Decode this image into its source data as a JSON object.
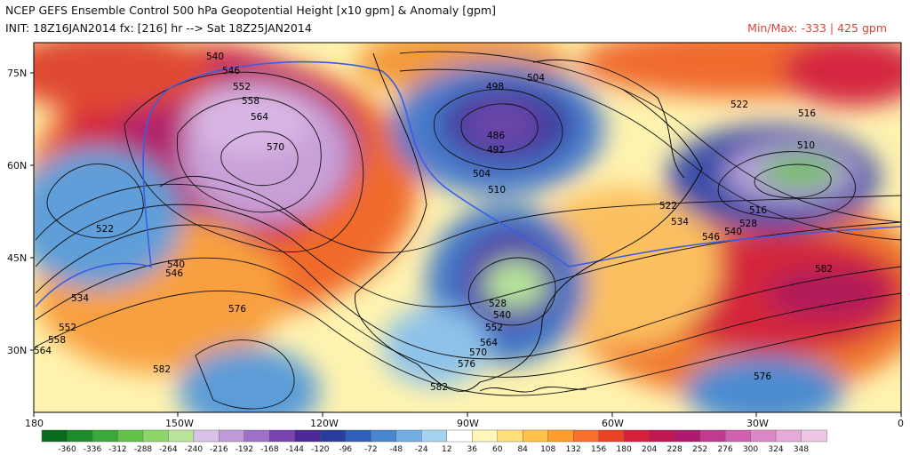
{
  "header": {
    "title": "NCEP GEFS Ensemble Control 500 hPa Geopotential Height [x10 gpm] & Anomaly [gpm]",
    "init": "INIT: 18Z16JAN2014 fx: [216] hr --> Sat 18Z25JAN2014",
    "minmax": "Min/Max:   -333 |   425 gpm"
  },
  "axes": {
    "lat_labels": [
      "75N",
      "60N",
      "45N",
      "30N"
    ],
    "lon_labels": [
      "180",
      "150W",
      "120W",
      "90W",
      "60W",
      "30W",
      "0"
    ]
  },
  "contours": [
    {
      "text": "540"
    },
    {
      "text": "546"
    },
    {
      "text": "552"
    },
    {
      "text": "558"
    },
    {
      "text": "564"
    },
    {
      "text": "570"
    },
    {
      "text": "504"
    },
    {
      "text": "498"
    },
    {
      "text": "486"
    },
    {
      "text": "492"
    },
    {
      "text": "504"
    },
    {
      "text": "510"
    },
    {
      "text": "522"
    },
    {
      "text": "516"
    },
    {
      "text": "510"
    },
    {
      "text": "516"
    },
    {
      "text": "528"
    },
    {
      "text": "522"
    },
    {
      "text": "534"
    },
    {
      "text": "546"
    },
    {
      "text": "540"
    },
    {
      "text": "582"
    },
    {
      "text": "522"
    },
    {
      "text": "540"
    },
    {
      "text": "546"
    },
    {
      "text": "534"
    },
    {
      "text": "552"
    },
    {
      "text": "558"
    },
    {
      "text": "564"
    },
    {
      "text": "576"
    },
    {
      "text": "582"
    },
    {
      "text": "528"
    },
    {
      "text": "540"
    },
    {
      "text": "552"
    },
    {
      "text": "564"
    },
    {
      "text": "570"
    },
    {
      "text": "576"
    },
    {
      "text": "582"
    },
    {
      "text": "576"
    }
  ],
  "colorbar": {
    "labels": [
      "-360",
      "-336",
      "-312",
      "-288",
      "-264",
      "-240",
      "-216",
      "-192",
      "-168",
      "-144",
      "-120",
      "-96",
      "-72",
      "-48",
      "-24",
      "12",
      "36",
      "60",
      "84",
      "108",
      "132",
      "156",
      "180",
      "204",
      "228",
      "252",
      "276",
      "300",
      "324",
      "348"
    ],
    "colors": [
      "#0a6b1e",
      "#1e8c2a",
      "#3aa83a",
      "#62c24a",
      "#8fd66a",
      "#b8e49a",
      "#d8c2e8",
      "#c09ad8",
      "#a070c8",
      "#7a44b0",
      "#4e2898",
      "#2a3c9e",
      "#2f5fb8",
      "#4a86d0",
      "#72aee2",
      "#a4d2f0",
      "#ffffff",
      "#fff6b8",
      "#ffe07a",
      "#ffc24a",
      "#ff9c2e",
      "#f8702a",
      "#ea4226",
      "#d42038",
      "#c01850",
      "#b01a6e",
      "#c03a90",
      "#d060b0",
      "#dc88c8",
      "#e6aad8",
      "#efc6e6"
    ]
  }
}
